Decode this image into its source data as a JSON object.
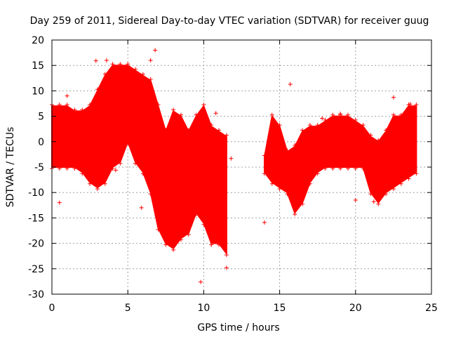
{
  "chart_data": {
    "type": "scatter",
    "title": "Day 259 of 2011, Sidereal Day-to-day VTEC variation (SDTVAR) for receiver guug",
    "xlabel": "GPS time / hours",
    "ylabel": "SDTVAR / TECUs",
    "xlim": [
      0,
      25
    ],
    "ylim": [
      -30,
      20
    ],
    "xticks": [
      0,
      5,
      10,
      15,
      20,
      25
    ],
    "yticks": [
      -30,
      -25,
      -20,
      -15,
      -10,
      -5,
      0,
      5,
      10,
      15,
      20
    ],
    "grid": true,
    "marker": "+",
    "color": "#ff0000",
    "envelope": {
      "description": "dense band of points, upper and lower bounds per GPS hour",
      "segments": [
        {
          "x": [
            0.0,
            0.5,
            1.0,
            1.5,
            2.0,
            2.5,
            3.0,
            3.5,
            4.0,
            4.5,
            5.0,
            5.5,
            6.0,
            6.5,
            7.0,
            7.5,
            8.0,
            8.5,
            9.0,
            9.5,
            10.0,
            10.5,
            11.0,
            11.5
          ],
          "upper": [
            7,
            7,
            7,
            6,
            6,
            7,
            10,
            13,
            15,
            15,
            15,
            14,
            13,
            12,
            7,
            2,
            6,
            5,
            2,
            5,
            7,
            3,
            2,
            1
          ],
          "lower": [
            -5,
            -5,
            -5,
            -5,
            -6,
            -8,
            -9,
            -8,
            -5,
            -4,
            0,
            -4,
            -6,
            -10,
            -17,
            -20,
            -21,
            -19,
            -18,
            -14,
            -16,
            -20,
            -20,
            -22
          ]
        },
        {
          "x": [
            14.0,
            14.5,
            15.0,
            15.5,
            16.0,
            16.5,
            17.0,
            17.5,
            18.0,
            18.5,
            19.0,
            19.5,
            20.0,
            20.5,
            21.0,
            21.5,
            22.0,
            22.5,
            23.0,
            23.5,
            24.0
          ],
          "upper": [
            -3,
            5,
            3,
            -2,
            -1,
            2,
            3,
            3,
            4,
            5,
            5,
            5,
            4,
            3,
            1,
            0,
            2,
            5,
            5,
            7,
            7
          ],
          "lower": [
            -6,
            -8,
            -9,
            -10,
            -14,
            -12,
            -8,
            -6,
            -5,
            -5,
            -5,
            -5,
            -5,
            -5,
            -10,
            -12,
            -10,
            -9,
            -8,
            -7,
            -6
          ]
        }
      ]
    },
    "outliers": [
      {
        "x": 0.5,
        "y": -12
      },
      {
        "x": 1.0,
        "y": 9
      },
      {
        "x": 2.9,
        "y": 15.9
      },
      {
        "x": 3.6,
        "y": 16
      },
      {
        "x": 4.2,
        "y": -5.6
      },
      {
        "x": 5.9,
        "y": -13
      },
      {
        "x": 6.5,
        "y": 16
      },
      {
        "x": 6.8,
        "y": 18
      },
      {
        "x": 9.8,
        "y": -27.6
      },
      {
        "x": 10.8,
        "y": 5.6
      },
      {
        "x": 11.5,
        "y": -24.8
      },
      {
        "x": 11.8,
        "y": -3.3
      },
      {
        "x": 14.0,
        "y": -15.9
      },
      {
        "x": 15.7,
        "y": 11.3
      },
      {
        "x": 22.5,
        "y": 8.7
      },
      {
        "x": 20.0,
        "y": -11.5
      },
      {
        "x": 21.2,
        "y": -11.8
      },
      {
        "x": 17.8,
        "y": 4.6
      },
      {
        "x": 19.0,
        "y": 5.5
      },
      {
        "x": 23.6,
        "y": 7.4
      }
    ]
  }
}
